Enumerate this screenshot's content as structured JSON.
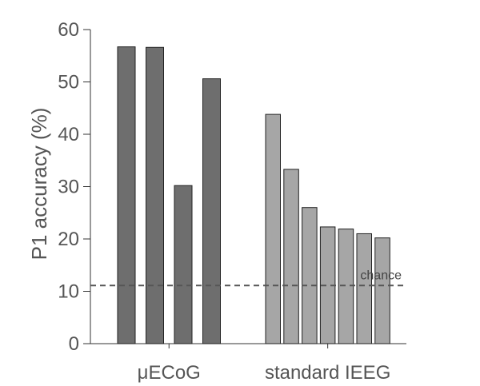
{
  "chart_data": {
    "type": "bar",
    "title": "",
    "ylabel": "P1 accuracy (%)",
    "ylim": [
      0,
      60
    ],
    "yticks": [
      "0",
      "10",
      "20",
      "30",
      "40",
      "50",
      "60"
    ],
    "groups": [
      {
        "label": "μECoG",
        "color": "#6e6e6e",
        "values": [
          56.7,
          56.6,
          30.2,
          50.6
        ]
      },
      {
        "label": "standard IEEG",
        "color": "#a6a6a6",
        "values": [
          43.8,
          33.3,
          26.0,
          22.3,
          21.9,
          21.0,
          20.2
        ]
      }
    ],
    "reference_line": {
      "label": "chance",
      "value": 11.1,
      "style": "dashed",
      "color": "#555555"
    }
  }
}
